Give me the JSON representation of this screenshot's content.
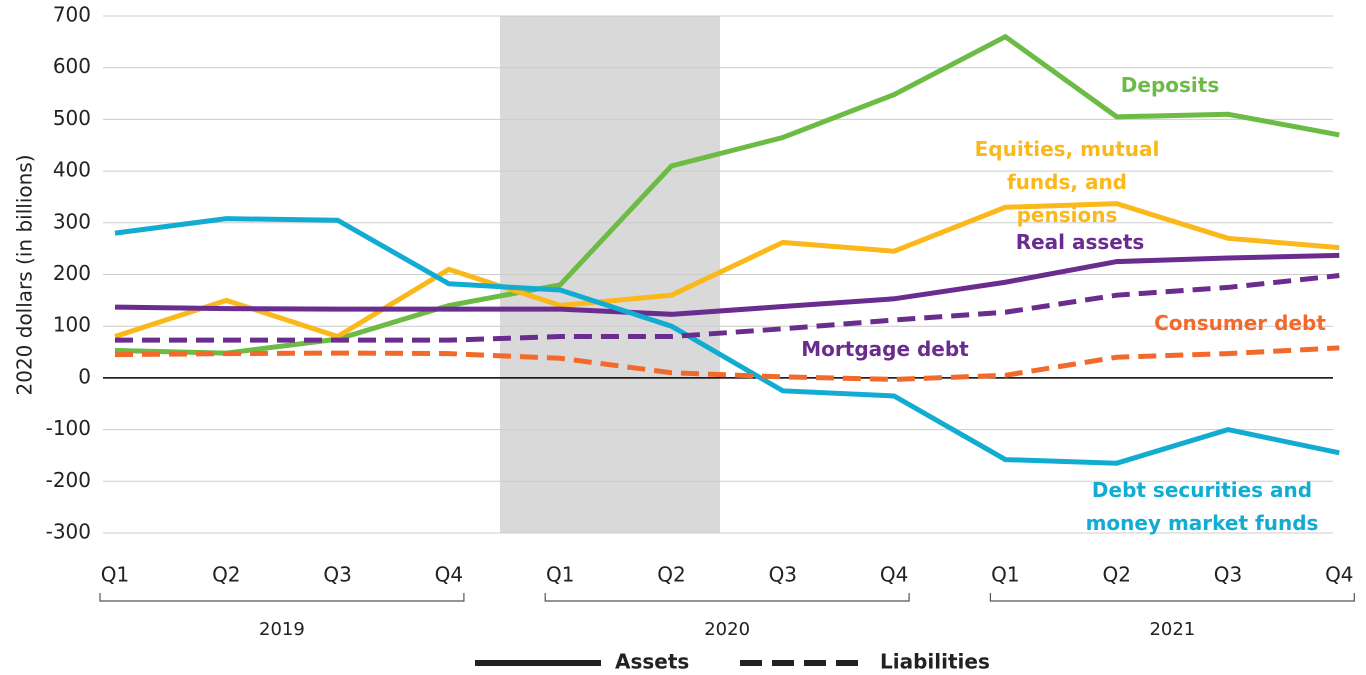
{
  "chart_data": {
    "type": "line",
    "y_axis_label": "2020 dollars (in billions)",
    "categories": [
      "Q1",
      "Q2",
      "Q3",
      "Q4",
      "Q1",
      "Q2",
      "Q3",
      "Q4",
      "Q1",
      "Q2",
      "Q3",
      "Q4"
    ],
    "groups": [
      "2019",
      "2020",
      "2021"
    ],
    "ylim": [
      -300,
      700
    ],
    "yticks": [
      700,
      600,
      500,
      400,
      300,
      200,
      100,
      0,
      -100,
      -200,
      -300
    ],
    "grid": true,
    "series": [
      {
        "name": "Deposits",
        "color": "#6cbb45",
        "dashed": false,
        "values": [
          53,
          48,
          75,
          140,
          180,
          410,
          465,
          548,
          660,
          505,
          510,
          470
        ]
      },
      {
        "name": "Equities, mutual funds, and pensions",
        "color": "#fbb81a",
        "dashed": false,
        "values": [
          80,
          150,
          80,
          210,
          140,
          160,
          262,
          245,
          330,
          337,
          270,
          252
        ]
      },
      {
        "name": "Real assets",
        "color": "#6b2c8f",
        "dashed": false,
        "values": [
          137,
          134,
          133,
          133,
          133,
          123,
          138,
          153,
          185,
          225,
          232,
          237
        ]
      },
      {
        "name": "Debt securities and money market funds",
        "color": "#12acd2",
        "dashed": false,
        "values": [
          280,
          308,
          305,
          182,
          170,
          100,
          -25,
          -35,
          -158,
          -165,
          -100,
          -145
        ]
      },
      {
        "name": "Mortgage debt",
        "color": "#6b2c8f",
        "dashed": true,
        "values": [
          73,
          73,
          73,
          73,
          80,
          80,
          95,
          112,
          127,
          160,
          175,
          198
        ]
      },
      {
        "name": "Consumer debt",
        "color": "#f26a2b",
        "dashed": true,
        "values": [
          45,
          47,
          48,
          47,
          38,
          10,
          2,
          -3,
          5,
          40,
          47,
          58
        ]
      }
    ],
    "legend": [
      {
        "label": "Assets",
        "dashed": false
      },
      {
        "label": "Liabilities",
        "dashed": true
      }
    ]
  }
}
